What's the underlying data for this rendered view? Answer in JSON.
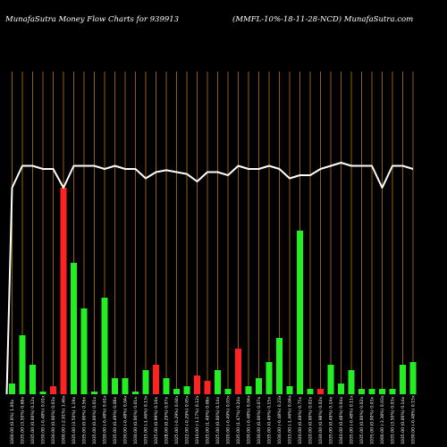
{
  "header": {
    "left_title": "MunafaSutra  Money Flow  Charts for 939913",
    "right_title": "(MMFL-10%-18-11-28-NCD) MunafaSutra.com"
  },
  "colors": {
    "background": "#000000",
    "grid": "#b8741a",
    "up": "#22ee22",
    "down": "#ff2222",
    "line": "#ffffff"
  },
  "chart_data": {
    "type": "bar",
    "categories": [
      "1000.00 (0.0%) 1.00x",
      "1035.00 (3.50%) 0.68x",
      "1035.00 (0.00%) 0.12x",
      "1030.00 (-0.48%) 0.01x",
      "1030.00 (0.00%) 0.03x",
      "1000.00 (-2.91%) 3.46x",
      "1035.00 (3.50%) 1.19x",
      "1035.00 (0.00%) 0.56x",
      "1035.00 (0.00%) 0.01x",
      "1030.00 (-0.48%) 0.61x",
      "1035.00 (0.49%) 0.08x",
      "1030.00 (-0.48%) 0.04x",
      "1030.00 (0.00%) 0.01x",
      "1015.00 (-1.46%) 0.13x",
      "1025.00 (0.99%) 0.16x",
      "1028.00 (0.29%) 0.07x",
      "1025.00 (-0.29%) 0.04x",
      "1022.00 (-0.29%) 0.05x",
      "1010.00 (-1.17%) 0.12x",
      "1025.00 (1.49%) 0.08x",
      "1025.00 (0.00%) 0.14x",
      "1020.00 (-0.49%) 0.03x",
      "1035.00 (1.47%) 0.24x",
      "1030.00 (-0.48%) 0.04x",
      "1030.00 (0.00%) 0.07x",
      "1035.00 (0.49%) 0.15x",
      "1030.00 (-0.48%) 0.23x",
      "1015.00 (-1.46%) 0.04x",
      "1020.00 (0.49%) 0.75x",
      "1020.00 (0.00%) 0.02x",
      "1030.00 (0.98%) 0.02x",
      "1035.00 (0.49%) 0.14x",
      "1040.00 (0.48%) 0.04x",
      "1035.00 (-0.48%) 0.11x",
      "1035.00 (0.00%) 0.02x",
      "1035.00 (0.00%) 0.03x",
      "1000.00 (-3.38%) 0.03x",
      "1035.00 (3.50%) 0.03x",
      "1035.00 (0.00%) 0.14x",
      "1030.00 (-0.48%) 0.15x"
    ],
    "series": [
      {
        "values": [
          0.04,
          0.22,
          0.11,
          0.01,
          0.03,
          0.77,
          0.49,
          0.32,
          0.01,
          0.36,
          0.06,
          0.06,
          0.01,
          0.09,
          0.11,
          0.06,
          0.02,
          0.03,
          0.07,
          0.05,
          0.09,
          0.02,
          0.17,
          0.03,
          0.06,
          0.12,
          0.21,
          0.03,
          0.61,
          0.02,
          0.02,
          0.11,
          0.04,
          0.09,
          0.02,
          0.02,
          0.02,
          0.02,
          0.11,
          0.12
        ],
        "directions": [
          "up",
          "up",
          "up",
          "up",
          "down",
          "down",
          "up",
          "up",
          "up",
          "up",
          "up",
          "up",
          "up",
          "up",
          "down",
          "up",
          "up",
          "up",
          "down",
          "down",
          "up",
          "up",
          "down",
          "up",
          "up",
          "up",
          "up",
          "up",
          "up",
          "up",
          "down",
          "up",
          "up",
          "up",
          "up",
          "up",
          "up",
          "up",
          "up",
          "up"
        ]
      },
      {
        "values": [
          1000,
          1035,
          1035,
          1030,
          1030,
          1000,
          1035,
          1035,
          1035,
          1030,
          1035,
          1030,
          1030,
          1015,
          1025,
          1028,
          1025,
          1022,
          1010,
          1025,
          1025,
          1020,
          1035,
          1030,
          1030,
          1035,
          1030,
          1015,
          1020,
          1020,
          1030,
          1035,
          1040,
          1035,
          1035,
          1035,
          1000,
          1035,
          1035,
          1030
        ]
      }
    ],
    "grid": true,
    "ylim": [
      0,
      1
    ]
  }
}
